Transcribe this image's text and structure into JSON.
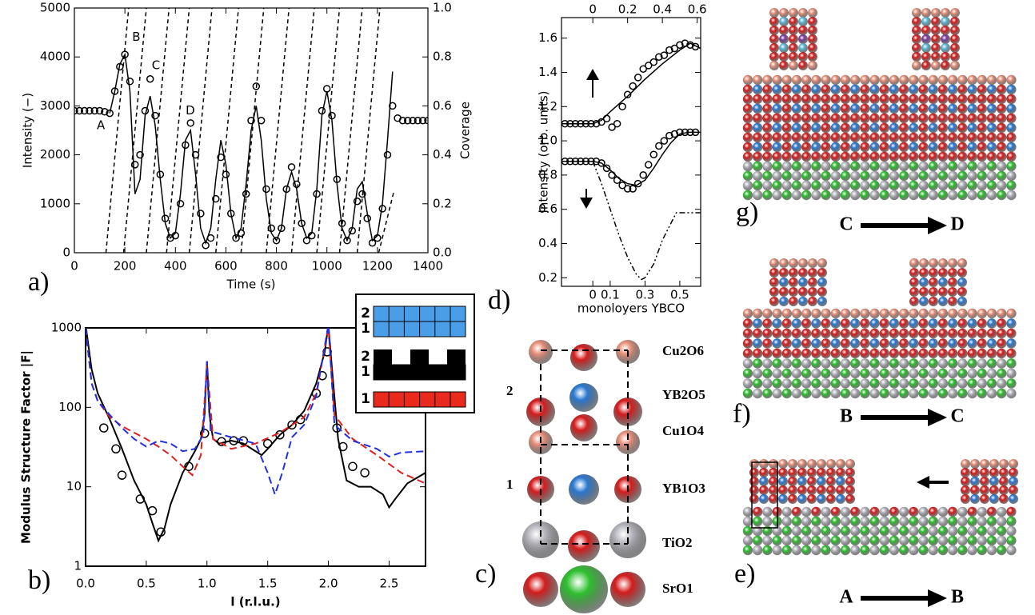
{
  "chart_data": [
    {
      "type": "line",
      "panel_label": "a)",
      "xlabel": "Time (s)",
      "ylabel": "Intensity (−)",
      "y2label": "Coverage",
      "xlim": [
        0,
        1400
      ],
      "xticks": [
        0,
        200,
        400,
        600,
        800,
        1000,
        1200,
        1400
      ],
      "ylim": [
        0,
        5000
      ],
      "yticks": [
        0,
        1000,
        2000,
        3000,
        4000,
        5000
      ],
      "y2lim": [
        0,
        1
      ],
      "y2ticks": [
        {
          "value": 0,
          "label": "0.0"
        },
        0.2,
        0.4,
        0.6,
        0.8,
        {
          "value": 1,
          "label": "1.0"
        }
      ],
      "x": [
        0,
        20,
        40,
        60,
        80,
        100,
        120,
        140,
        160,
        180,
        200,
        220,
        240,
        260,
        280,
        300,
        320,
        340,
        360,
        380,
        400,
        420,
        440,
        460,
        480,
        500,
        520,
        540,
        560,
        580,
        600,
        620,
        640,
        660,
        680,
        700,
        720,
        740,
        760,
        780,
        800,
        820,
        840,
        860,
        880,
        900,
        920,
        940,
        960,
        980,
        1000,
        1020,
        1040,
        1060,
        1080,
        1100,
        1120,
        1140,
        1160,
        1180,
        1200,
        1220,
        1240,
        1260,
        1280,
        1300,
        1320,
        1340,
        1360,
        1380,
        1400
      ],
      "series": [
        {
          "color": "#000000",
          "style": "markers",
          "values": [
            2900,
            2900,
            2900,
            2900,
            2900,
            2900,
            2880,
            2850,
            3300,
            3800,
            4050,
            3500,
            1800,
            2000,
            2900,
            3550,
            2800,
            1600,
            700,
            300,
            350,
            1000,
            2200,
            2650,
            2000,
            800,
            150,
            300,
            1100,
            1950,
            1600,
            800,
            300,
            400,
            1200,
            2700,
            3400,
            2700,
            1300,
            500,
            250,
            500,
            1300,
            1750,
            1400,
            600,
            250,
            350,
            1200,
            2900,
            3350,
            2800,
            1500,
            600,
            250,
            450,
            1050,
            1200,
            700,
            200,
            300,
            900,
            2000,
            3000,
            2750,
            2700,
            2700,
            2700,
            2700,
            2700,
            2700
          ]
        },
        {
          "color": "#000000",
          "style": "solid",
          "values": [
            null,
            null,
            null,
            null,
            null,
            null,
            null,
            2850,
            3300,
            3850,
            4050,
            3300,
            1200,
            1500,
            2800,
            3200,
            2600,
            1500,
            600,
            300,
            400,
            1200,
            2300,
            2500,
            1600,
            500,
            200,
            500,
            1500,
            2300,
            1800,
            800,
            300,
            500,
            1400,
            2500,
            3000,
            2300,
            1100,
            400,
            250,
            500,
            1300,
            1650,
            1300,
            600,
            300,
            400,
            1300,
            2800,
            3300,
            2700,
            1400,
            500,
            250,
            500,
            1300,
            1450,
            800,
            250,
            350,
            1000,
            2300,
            3700,
            null,
            null,
            null,
            null,
            null,
            null,
            null
          ]
        },
        {
          "color": "#000000",
          "style": "dashed",
          "axis": "y2",
          "x": [
            125,
            215
          ],
          "values": [
            0,
            1
          ]
        },
        {
          "color": "#000000",
          "style": "dashed",
          "axis": "y2",
          "x": [
            195,
            285
          ],
          "values": [
            0,
            1
          ]
        },
        {
          "color": "#000000",
          "style": "dashed",
          "axis": "y2",
          "x": [
            285,
            375
          ],
          "values": [
            0,
            1
          ]
        },
        {
          "color": "#000000",
          "style": "dashed",
          "axis": "y2",
          "x": [
            365,
            455
          ],
          "values": [
            0,
            1
          ]
        },
        {
          "color": "#000000",
          "style": "dashed",
          "axis": "y2",
          "x": [
            455,
            545
          ],
          "values": [
            0,
            1
          ]
        },
        {
          "color": "#000000",
          "style": "dashed",
          "axis": "y2",
          "x": [
            560,
            650
          ],
          "values": [
            0,
            1
          ]
        },
        {
          "color": "#000000",
          "style": "dashed",
          "axis": "y2",
          "x": [
            660,
            750
          ],
          "values": [
            0,
            1
          ]
        },
        {
          "color": "#000000",
          "style": "dashed",
          "axis": "y2",
          "x": [
            760,
            850
          ],
          "values": [
            0,
            1
          ]
        },
        {
          "color": "#000000",
          "style": "dashed",
          "axis": "y2",
          "x": [
            860,
            950
          ],
          "values": [
            0,
            1
          ]
        },
        {
          "color": "#000000",
          "style": "dashed",
          "axis": "y2",
          "x": [
            960,
            1050
          ],
          "values": [
            0,
            1
          ]
        },
        {
          "color": "#000000",
          "style": "dashed",
          "axis": "y2",
          "x": [
            1050,
            1140
          ],
          "values": [
            0,
            1
          ]
        },
        {
          "color": "#000000",
          "style": "dashed",
          "axis": "y2",
          "x": [
            1120,
            1210
          ],
          "values": [
            0,
            1
          ]
        },
        {
          "color": "#000000",
          "style": "dashed",
          "axis": "y2",
          "x": [
            1205,
            1265
          ],
          "values": [
            0,
            0.25
          ]
        }
      ],
      "annotations": [
        {
          "text": "A",
          "x": 105,
          "y": 2600
        },
        {
          "text": "B",
          "x": 245,
          "y": 4400
        },
        {
          "text": "C",
          "x": 323,
          "y": 3820
        },
        {
          "text": "D",
          "x": 459,
          "y": 2900
        }
      ]
    },
    {
      "type": "line",
      "panel_label": "b)",
      "xlabel": "l (r.l.u.)",
      "ylabel": "Modulus Structure Factor |F|",
      "log": true,
      "xlim": [
        0,
        2.8
      ],
      "xticks": [
        {
          "value": 0,
          "label": "0.0"
        },
        0.5,
        {
          "value": 1,
          "label": "1.0"
        },
        1.5,
        {
          "value": 2,
          "label": "2.0"
        },
        2.5
      ],
      "ylim": [
        1,
        1000
      ],
      "yticks": [
        1,
        10,
        100,
        1000
      ],
      "series": [
        {
          "color": "#000000",
          "style": "markers",
          "x": [
            0.15,
            0.25,
            0.3,
            0.45,
            0.55,
            0.62,
            0.85,
            0.98,
            1.12,
            1.22,
            1.3,
            1.5,
            1.6,
            1.7,
            1.77,
            1.9,
            1.95,
            1.99,
            2.07,
            2.12,
            2.2,
            2.3
          ],
          "values": [
            55,
            30,
            14,
            7,
            5,
            2.7,
            18,
            47,
            37,
            38,
            38,
            35,
            45,
            60,
            70,
            150,
            250,
            500,
            55,
            32,
            18,
            15
          ]
        },
        {
          "color": "#000000",
          "style": "solid",
          "x": [
            0,
            0.05,
            0.1,
            0.2,
            0.3,
            0.4,
            0.5,
            0.55,
            0.6,
            0.65,
            0.7,
            0.8,
            0.9,
            0.95,
            0.98,
            1.0,
            1.02,
            1.05,
            1.1,
            1.2,
            1.3,
            1.4,
            1.45,
            1.5,
            1.6,
            1.7,
            1.8,
            1.9,
            1.97,
            2.0,
            2.03,
            2.08,
            2.15,
            2.25,
            2.35,
            2.45,
            2.5,
            2.55,
            2.65,
            2.8
          ],
          "values": [
            1100,
            300,
            150,
            70,
            30,
            12,
            6,
            3.5,
            2.1,
            3,
            6,
            15,
            28,
            40,
            80,
            380,
            80,
            40,
            35,
            38,
            35,
            28,
            25,
            30,
            45,
            60,
            90,
            200,
            500,
            1100,
            300,
            40,
            12,
            10,
            10,
            8,
            5.5,
            7,
            11,
            15
          ]
        },
        {
          "color": "#e02020",
          "style": "dashed",
          "x": [
            0,
            0.05,
            0.1,
            0.2,
            0.3,
            0.4,
            0.5,
            0.6,
            0.7,
            0.8,
            0.88,
            0.95,
            1.0,
            1.05,
            1.2,
            1.4,
            1.6,
            1.8,
            1.9,
            2.0,
            2.05,
            2.2,
            2.4,
            2.6,
            2.8
          ],
          "values": [
            1000,
            200,
            120,
            75,
            58,
            48,
            40,
            32,
            25,
            18,
            14,
            25,
            350,
            40,
            30,
            35,
            48,
            75,
            150,
            1000,
            80,
            40,
            25,
            15,
            11
          ]
        },
        {
          "color": "#2030e0",
          "style": "dashed",
          "x": [
            0,
            0.05,
            0.1,
            0.2,
            0.3,
            0.4,
            0.5,
            0.6,
            0.7,
            0.8,
            0.9,
            0.97,
            1.0,
            1.03,
            1.2,
            1.4,
            1.5,
            1.56,
            1.62,
            1.7,
            1.8,
            1.9,
            2.0,
            2.05,
            2.2,
            2.4,
            2.5,
            2.6,
            2.8
          ],
          "values": [
            1000,
            200,
            120,
            80,
            55,
            40,
            32,
            38,
            35,
            28,
            30,
            45,
            380,
            50,
            42,
            35,
            15,
            8,
            15,
            42,
            60,
            140,
            1100,
            60,
            38,
            30,
            24,
            27,
            28
          ]
        }
      ],
      "inset": [
        {
          "color": "#4a9ee8",
          "layers": [
            "2",
            "1"
          ]
        },
        {
          "color": "#000000",
          "layers": [
            "2",
            "1"
          ]
        },
        {
          "color": "#e8291c",
          "layers": [
            "1"
          ]
        }
      ]
    },
    {
      "type": "line",
      "panel_label": "d)",
      "xlabel": "monoloyers YBCO",
      "ylabel": "Intensity (orb. units)",
      "xlim": [
        -0.18,
        0.62
      ],
      "xticks": [
        0,
        0.1,
        0.3,
        0.5
      ],
      "x2ticks": [
        0,
        0.2,
        0.4,
        0.6
      ],
      "ylim": [
        0.15,
        1.72
      ],
      "yticks": [
        0.2,
        0.4,
        0.6,
        0.8,
        {
          "value": 1,
          "label": "1.0"
        },
        1.2,
        1.4,
        1.6
      ],
      "series": [
        {
          "color": "#000000",
          "style": "markers",
          "x": [
            -0.16,
            -0.13,
            -0.1,
            -0.07,
            -0.04,
            -0.01,
            0.02,
            0.05,
            0.08,
            0.11,
            0.14,
            0.17,
            0.2,
            0.23,
            0.26,
            0.29,
            0.32,
            0.35,
            0.38,
            0.41,
            0.44,
            0.47,
            0.5,
            0.53,
            0.56,
            0.59
          ],
          "values": [
            1.1,
            1.1,
            1.1,
            1.1,
            1.1,
            1.1,
            1.1,
            1.11,
            1.13,
            1.08,
            1.1,
            1.2,
            1.27,
            1.32,
            1.37,
            1.42,
            1.44,
            1.46,
            1.49,
            1.5,
            1.53,
            1.54,
            1.56,
            1.57,
            1.56,
            1.55
          ]
        },
        {
          "color": "#000000",
          "style": "solid",
          "x": [
            -0.18,
            0.0,
            0.05,
            0.1,
            0.2,
            0.3,
            0.4,
            0.5,
            0.56,
            0.62
          ],
          "values": [
            1.1,
            1.1,
            1.12,
            1.17,
            1.26,
            1.36,
            1.45,
            1.53,
            1.57,
            1.54
          ]
        },
        {
          "color": "#000000",
          "style": "markers",
          "x": [
            -0.16,
            -0.13,
            -0.1,
            -0.07,
            -0.04,
            -0.01,
            0.02,
            0.05,
            0.08,
            0.11,
            0.14,
            0.17,
            0.2,
            0.23,
            0.26,
            0.29,
            0.32,
            0.35,
            0.38,
            0.41,
            0.44,
            0.47,
            0.5,
            0.53,
            0.56,
            0.59
          ],
          "values": [
            0.88,
            0.88,
            0.88,
            0.88,
            0.88,
            0.88,
            0.88,
            0.87,
            0.84,
            0.8,
            0.77,
            0.74,
            0.72,
            0.72,
            0.75,
            0.8,
            0.86,
            0.92,
            0.97,
            1.0,
            1.03,
            1.04,
            1.05,
            1.05,
            1.05,
            1.05
          ]
        },
        {
          "color": "#000000",
          "style": "solid",
          "x": [
            -0.18,
            0.0,
            0.05,
            0.1,
            0.15,
            0.2,
            0.25,
            0.3,
            0.35,
            0.4,
            0.45,
            0.5,
            0.55,
            0.62
          ],
          "values": [
            0.88,
            0.88,
            0.87,
            0.83,
            0.78,
            0.75,
            0.74,
            0.77,
            0.84,
            0.92,
            0.99,
            1.04,
            1.05,
            1.05
          ]
        },
        {
          "color": "#000000",
          "style": "dashdot",
          "x": [
            0.0,
            0.05,
            0.1,
            0.15,
            0.2,
            0.25,
            0.28,
            0.3,
            0.35,
            0.4,
            0.45,
            0.48,
            0.62
          ],
          "values": [
            0.88,
            0.75,
            0.6,
            0.45,
            0.32,
            0.22,
            0.19,
            0.2,
            0.28,
            0.42,
            0.52,
            0.58,
            0.58
          ]
        }
      ]
    }
  ],
  "panels": {
    "c": {
      "label": "c)",
      "layers": [
        "Cu2O6",
        "YB2O5",
        "Cu1O4",
        "YB1O3",
        "TiO2",
        "SrO1"
      ],
      "blocks": [
        "2",
        "1"
      ]
    },
    "g": {
      "label": "g)",
      "from": "C",
      "to": "D"
    },
    "f": {
      "label": "f)",
      "from": "B",
      "to": "C"
    },
    "e": {
      "label": "e)",
      "from": "A",
      "to": "B"
    }
  }
}
